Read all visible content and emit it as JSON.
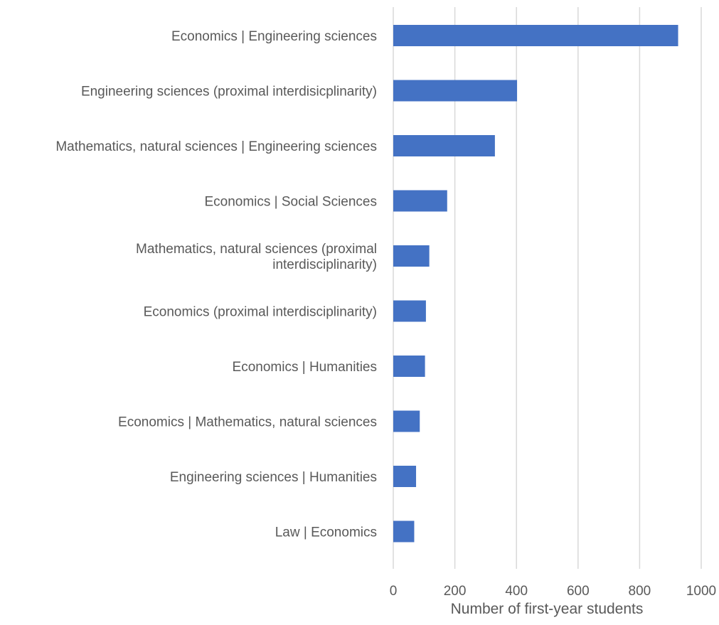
{
  "chart_data": {
    "type": "bar",
    "orientation": "horizontal",
    "title": "",
    "xlabel": "Number of first-year students",
    "ylabel": "",
    "xlim": [
      0,
      1000
    ],
    "x_ticks": [
      "0",
      "200",
      "400",
      "600",
      "800",
      "1000"
    ],
    "grid": true,
    "legend": "none",
    "bar_color": "#4472C4",
    "categories": [
      [
        "Economics | Engineering sciences"
      ],
      [
        "Engineering sciences  (proximal interdisicplinarity)"
      ],
      [
        "Mathematics, natural sciences | Engineering sciences"
      ],
      [
        "Economics | Social Sciences"
      ],
      [
        "Mathematics, natural sciences  (proximal",
        "interdisciplinarity)"
      ],
      [
        "Economics (proximal interdisciplinarity)"
      ],
      [
        "Economics | Humanities"
      ],
      [
        "Economics | Mathematics, natural sciences"
      ],
      [
        "Engineering sciences | Humanities"
      ],
      [
        "Law | Economics"
      ]
    ],
    "values": [
      925,
      402,
      330,
      175,
      117,
      106,
      103,
      86,
      74,
      68
    ]
  }
}
